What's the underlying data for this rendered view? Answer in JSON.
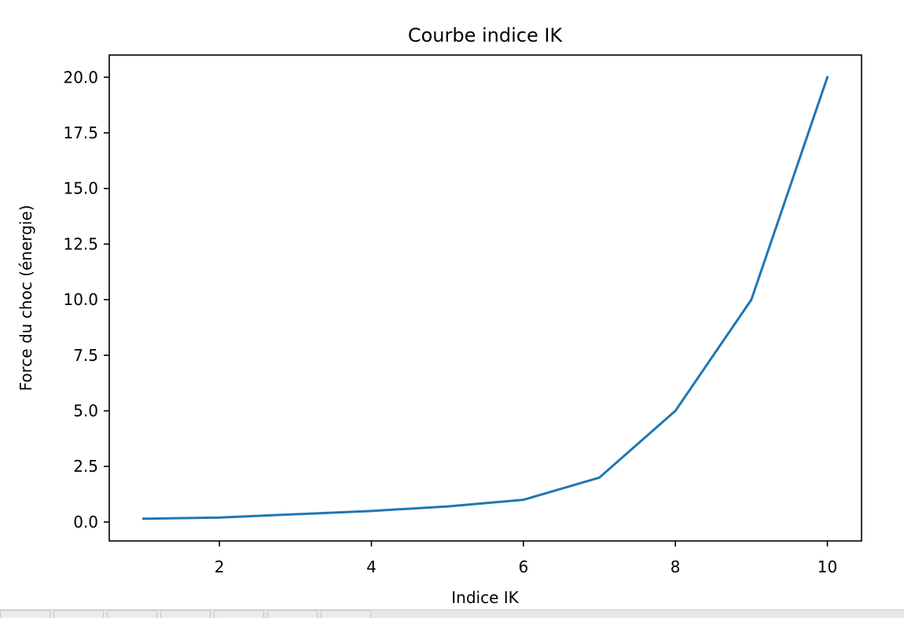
{
  "chart_data": {
    "type": "line",
    "title": "Courbe indice IK",
    "xlabel": "Indice IK",
    "ylabel": "Force du choc (énergie)",
    "xlim": [
      0.55,
      10.45
    ],
    "ylim": [
      -0.85,
      21.0
    ],
    "xticks": [
      2,
      4,
      6,
      8,
      10
    ],
    "xtick_labels": [
      "2",
      "4",
      "6",
      "8",
      "10"
    ],
    "yticks": [
      0.0,
      2.5,
      5.0,
      7.5,
      10.0,
      12.5,
      15.0,
      17.5,
      20.0
    ],
    "ytick_labels": [
      "0.0",
      "2.5",
      "5.0",
      "7.5",
      "10.0",
      "12.5",
      "15.0",
      "17.5",
      "20.0"
    ],
    "grid": false,
    "series": [
      {
        "color": "#1f77b4",
        "x": [
          1,
          2,
          3,
          4,
          5,
          6,
          7,
          8,
          9,
          10
        ],
        "y": [
          0.15,
          0.2,
          0.35,
          0.5,
          0.7,
          1.0,
          2.0,
          5.0,
          10.0,
          20.0
        ]
      }
    ]
  }
}
